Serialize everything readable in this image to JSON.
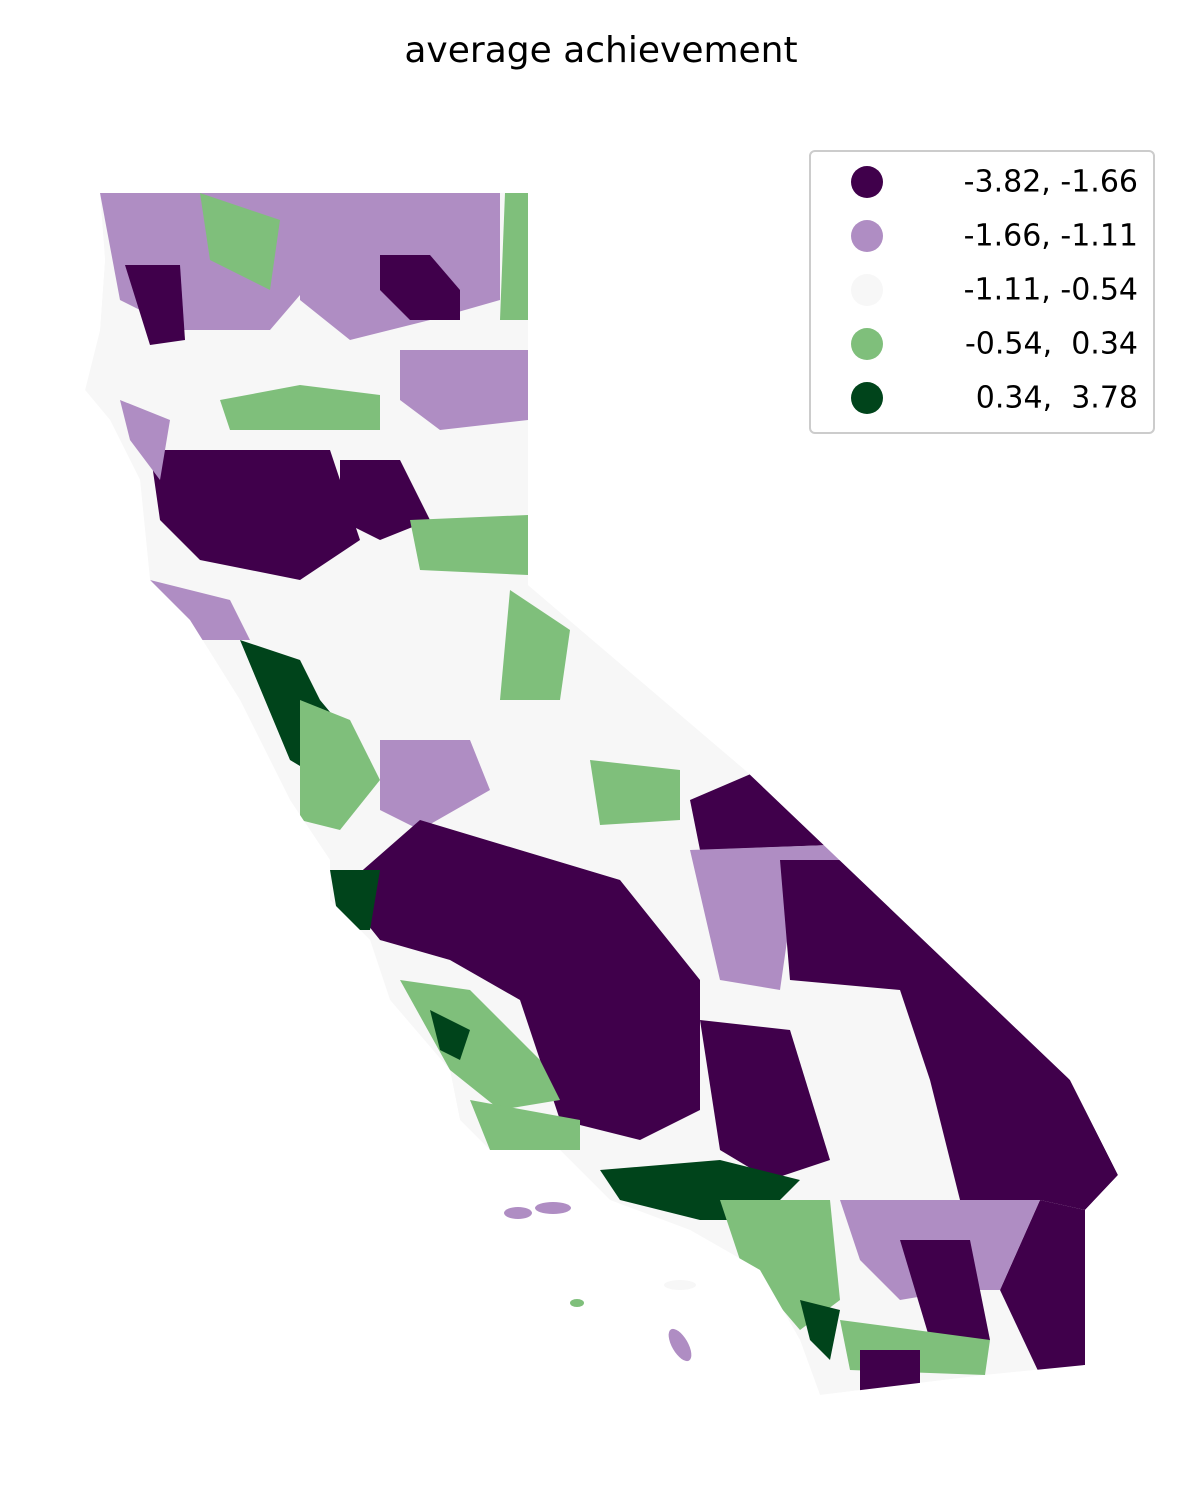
{
  "title": "average achievement",
  "legend_loc": "upper right",
  "legend": [
    {
      "label": "-3.82, -1.66",
      "color": "#40004b"
    },
    {
      "label": "-1.66, -1.11",
      "color": "#af8dc3"
    },
    {
      "label": "-1.11, -0.54",
      "color": "#f7f7f7"
    },
    {
      "label": "-0.54,  0.34",
      "color": "#7fbf7b"
    },
    {
      "label": " 0.34,  3.78",
      "color": "#00441b"
    }
  ]
}
